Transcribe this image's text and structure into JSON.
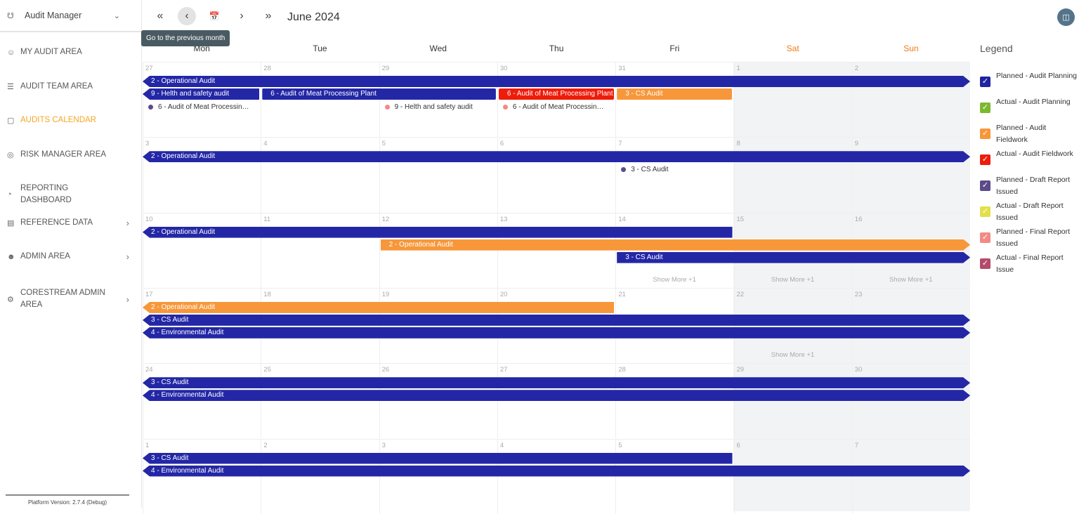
{
  "sidebar": {
    "app": "Audit Manager",
    "items": [
      {
        "label": "MY AUDIT AREA",
        "icon": "user-icon",
        "y": 75
      },
      {
        "label": "AUDIT TEAM AREA",
        "icon": "list-icon",
        "y": 124
      },
      {
        "label": "AUDITS CALENDAR",
        "icon": "calendar-icon",
        "active": true,
        "y": 172
      },
      {
        "label": "RISK MANAGER AREA",
        "icon": "risk-icon",
        "y": 221
      },
      {
        "label": "REPORTING DASHBOARD",
        "icon": "chart-icon",
        "y": 269
      },
      {
        "label": "REFERENCE DATA",
        "icon": "database-icon",
        "sub": true,
        "y": 318
      },
      {
        "label": "ADMIN AREA",
        "icon": "admin-icon",
        "sub": true,
        "y": 366
      },
      {
        "label": "CORESTREAM ADMIN AREA",
        "icon": "gear-icon",
        "sub": true,
        "y": 418
      }
    ],
    "version": "Platform Version: 2.7.4 (Debug)"
  },
  "toolbar": {
    "title": "June 2024",
    "tooltip": "Go to the previous month"
  },
  "days": [
    "Mon",
    "Tue",
    "Wed",
    "Thu",
    "Fri",
    "Sat",
    "Sun"
  ],
  "colors": {
    "blue": "#2327a6",
    "red": "#ee1c0b",
    "orange": "#f7973a",
    "purple": "#5b4b8a",
    "pink": "#f28a85"
  },
  "weeks": [
    {
      "dates": [
        "27",
        "28",
        "29",
        "30",
        "31",
        "1",
        "2"
      ],
      "events": [
        {
          "label": "2 - Operational Audit",
          "color": "blue",
          "start": 0,
          "span": 7,
          "slot": 0,
          "left": true,
          "right": true
        },
        {
          "label": "9 - Helth and safety audit",
          "color": "blue",
          "start": 0,
          "span": 1,
          "slot": 1,
          "left": true
        },
        {
          "label": "6 - Audit of Meat Processing Plant",
          "color": "blue",
          "start": 1,
          "span": 2,
          "slot": 1
        },
        {
          "label": "6 - Audit of Meat Processing Plant",
          "color": "red",
          "start": 3,
          "span": 1,
          "slot": 1
        },
        {
          "label": "3 - CS Audit",
          "color": "orange",
          "start": 4,
          "span": 1,
          "slot": 1
        }
      ],
      "dots": [
        {
          "label": "6 - Audit of Meat Processing Plant",
          "color": "purple",
          "day": 0,
          "slot": 2
        },
        {
          "label": "9 - Helth and safety audit",
          "color": "pink",
          "day": 2,
          "slot": 2
        },
        {
          "label": "6 - Audit of Meat Processing Plant",
          "color": "pink",
          "day": 3,
          "slot": 2
        }
      ],
      "more": []
    },
    {
      "dates": [
        "3",
        "4",
        "5",
        "6",
        "7",
        "8",
        "9"
      ],
      "events": [
        {
          "label": "2 - Operational Audit",
          "color": "blue",
          "start": 0,
          "span": 7,
          "slot": 0,
          "left": true,
          "right": true
        }
      ],
      "dots": [
        {
          "label": "3 - CS Audit",
          "color": "purple",
          "day": 4,
          "slot": 1
        }
      ],
      "more": []
    },
    {
      "dates": [
        "10",
        "11",
        "12",
        "13",
        "14",
        "15",
        "16"
      ],
      "events": [
        {
          "label": "2 - Operational Audit",
          "color": "blue",
          "start": 0,
          "span": 5,
          "slot": 0,
          "left": true
        },
        {
          "label": "2 - Operational Audit",
          "color": "orange",
          "start": 2,
          "span": 5,
          "slot": 1,
          "right": true
        },
        {
          "label": "3 - CS Audit",
          "color": "blue",
          "start": 4,
          "span": 3,
          "slot": 2,
          "right": true
        }
      ],
      "dots": [],
      "more": [
        {
          "day": 4,
          "label": "Show More +1"
        },
        {
          "day": 5,
          "label": "Show More +1"
        },
        {
          "day": 6,
          "label": "Show More +1"
        }
      ]
    },
    {
      "dates": [
        "17",
        "18",
        "19",
        "20",
        "21",
        "22",
        "23"
      ],
      "events": [
        {
          "label": "2 - Operational Audit",
          "color": "orange",
          "start": 0,
          "span": 4,
          "slot": 0,
          "left": true
        },
        {
          "label": "3 - CS Audit",
          "color": "blue",
          "start": 0,
          "span": 7,
          "slot": 1,
          "left": true,
          "right": true
        },
        {
          "label": "4 - Environmental Audit",
          "color": "blue",
          "start": 0,
          "span": 7,
          "slot": 2,
          "left": true,
          "right": true
        }
      ],
      "dots": [],
      "more": [
        {
          "day": 5,
          "label": "Show More +1"
        }
      ]
    },
    {
      "dates": [
        "24",
        "25",
        "26",
        "27",
        "28",
        "29",
        "30"
      ],
      "events": [
        {
          "label": "3 - CS Audit",
          "color": "blue",
          "start": 0,
          "span": 7,
          "slot": 0,
          "left": true,
          "right": true
        },
        {
          "label": "4 - Environmental Audit",
          "color": "blue",
          "start": 0,
          "span": 7,
          "slot": 1,
          "left": true,
          "right": true
        }
      ],
      "dots": [],
      "more": []
    },
    {
      "dates": [
        "1",
        "2",
        "3",
        "4",
        "5",
        "6",
        "7"
      ],
      "events": [
        {
          "label": "3 - CS Audit",
          "color": "blue",
          "start": 0,
          "span": 5,
          "slot": 0,
          "left": true
        },
        {
          "label": "4 - Environmental Audit",
          "color": "blue",
          "start": 0,
          "span": 7,
          "slot": 1,
          "left": true,
          "right": true
        }
      ],
      "dots": [],
      "more": []
    }
  ],
  "legend": {
    "title": "Legend",
    "items": [
      {
        "label": "Planned - Audit Planning",
        "color": "#1f23a0"
      },
      {
        "label": "Actual - Audit Planning",
        "color": "#7cb82f"
      },
      {
        "label": "Planned - Audit Fieldwork",
        "color": "#f7973a"
      },
      {
        "label": "Actual - Audit Fieldwork",
        "color": "#ee1c0b"
      },
      {
        "label": "Planned - Draft Report Issued",
        "color": "#5b4b8a"
      },
      {
        "label": "Actual - Draft Report Issued",
        "color": "#e2e04a"
      },
      {
        "label": "Planned - Final Report Issued",
        "color": "#f28a85"
      },
      {
        "label": "Actual - Final Report Issue",
        "color": "#b44a6c"
      }
    ]
  }
}
